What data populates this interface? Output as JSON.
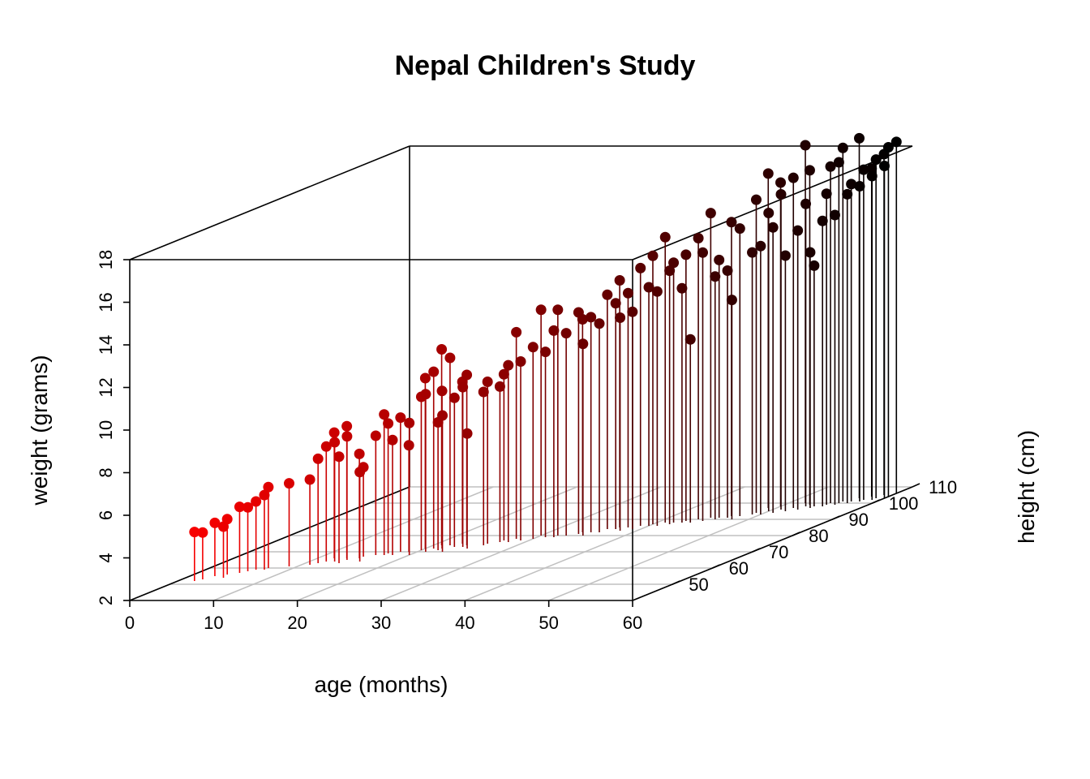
{
  "chart_data": {
    "type": "scatter3d",
    "title": "Nepal Children's Study",
    "xlabel": "age (months)",
    "ylabel": "height (cm)",
    "zlabel": "weight (grams)",
    "xlim": [
      0,
      60
    ],
    "ylim": [
      40,
      110
    ],
    "zlim": [
      2,
      18
    ],
    "x_ticks": [
      "0",
      "10",
      "20",
      "30",
      "40",
      "50",
      "60"
    ],
    "y_ticks": [
      "50",
      "60",
      "70",
      "80",
      "90",
      "100",
      "110"
    ],
    "z_ticks": [
      "2",
      "4",
      "6",
      "8",
      "10",
      "12",
      "14",
      "16",
      "18"
    ],
    "grid": true,
    "drop_lines": true,
    "color_gradient": [
      "#ff0000",
      "#000000"
    ],
    "points": [
      [
        2,
        52,
        4.3
      ],
      [
        2.5,
        53,
        4.2
      ],
      [
        3,
        55,
        4.5
      ],
      [
        4,
        56,
        4.6
      ],
      [
        4.5,
        54,
        4.4
      ],
      [
        5,
        57,
        5.1
      ],
      [
        5.5,
        58,
        5.0
      ],
      [
        6,
        59,
        5.2
      ],
      [
        7,
        60,
        5.8
      ],
      [
        7,
        59,
        5.5
      ],
      [
        9,
        61,
        5.9
      ],
      [
        11,
        62,
        6.0
      ],
      [
        11.5,
        63,
        6.9
      ],
      [
        12,
        66,
        7.9
      ],
      [
        12,
        64,
        7.4
      ],
      [
        13,
        64,
        7.6
      ],
      [
        13.5,
        66,
        8.2
      ],
      [
        14,
        63,
        7.0
      ],
      [
        14,
        65,
        7.8
      ],
      [
        15,
        66,
        6.9
      ],
      [
        15,
        67,
        6.2
      ],
      [
        16,
        64,
        6.2
      ],
      [
        16,
        68,
        7.6
      ],
      [
        17,
        68,
        8.6
      ],
      [
        17,
        69,
        8.1
      ],
      [
        18,
        68,
        7.4
      ],
      [
        18,
        70,
        8.3
      ],
      [
        19,
        70,
        7.0
      ],
      [
        20,
        71,
        9.2
      ],
      [
        20,
        72,
        10.0
      ],
      [
        20,
        68,
        8.2
      ],
      [
        21,
        70,
        9.4
      ],
      [
        21,
        72,
        10.3
      ],
      [
        21,
        74,
        11.2
      ],
      [
        22,
        72,
        9.4
      ],
      [
        22,
        74,
        10.8
      ],
      [
        22,
        71,
        8.0
      ],
      [
        23,
        70,
        8.4
      ],
      [
        23,
        73,
        9.0
      ],
      [
        23,
        75,
        9.6
      ],
      [
        24,
        73,
        9.5
      ],
      [
        24,
        74,
        10.0
      ],
      [
        25,
        72,
        7.4
      ],
      [
        26,
        74,
        9.2
      ],
      [
        26,
        75,
        9.6
      ],
      [
        27,
        76,
        9.3
      ],
      [
        27,
        77,
        9.8
      ],
      [
        28,
        76,
        10.3
      ],
      [
        28,
        78,
        11.7
      ],
      [
        29,
        77,
        10.4
      ],
      [
        30,
        78,
        11.0
      ],
      [
        30,
        80,
        12.6
      ],
      [
        31,
        79,
        10.7
      ],
      [
        32,
        79,
        11.7
      ],
      [
        32,
        80,
        12.6
      ],
      [
        33,
        80,
        11.5
      ],
      [
        34,
        81,
        12.4
      ],
      [
        34,
        82,
        12.0
      ],
      [
        35,
        80,
        11.0
      ],
      [
        35,
        82,
        12.1
      ],
      [
        36,
        82,
        11.8
      ],
      [
        36,
        84,
        13.0
      ],
      [
        37,
        84,
        12.6
      ],
      [
        37,
        85,
        13.6
      ],
      [
        38,
        83,
        12.0
      ],
      [
        38,
        85,
        13.0
      ],
      [
        39,
        86,
        14.1
      ],
      [
        39,
        84,
        12.2
      ],
      [
        40,
        86,
        13.2
      ],
      [
        40,
        87,
        14.6
      ],
      [
        41,
        88,
        15.4
      ],
      [
        41,
        86,
        13.0
      ],
      [
        42,
        87,
        13.9
      ],
      [
        42,
        88,
        14.2
      ],
      [
        43,
        88,
        13.0
      ],
      [
        43,
        89,
        14.5
      ],
      [
        44,
        88,
        10.6
      ],
      [
        44,
        90,
        15.2
      ],
      [
        45,
        89,
        14.6
      ],
      [
        45,
        91,
        16.3
      ],
      [
        46,
        90,
        13.4
      ],
      [
        46,
        91,
        14.1
      ],
      [
        47,
        91,
        13.6
      ],
      [
        47,
        92,
        15.8
      ],
      [
        48,
        92,
        15.5
      ],
      [
        48,
        90,
        12.3
      ],
      [
        49,
        93,
        14.3
      ],
      [
        49,
        94,
        16.7
      ],
      [
        50,
        93,
        14.6
      ],
      [
        50,
        95,
        16.0
      ],
      [
        51,
        94,
        15.4
      ],
      [
        51,
        96,
        16.8
      ],
      [
        52,
        95,
        14.0
      ],
      [
        52,
        97,
        17.5
      ],
      [
        53,
        96,
        15.1
      ],
      [
        53,
        98,
        16.2
      ],
      [
        54,
        97,
        14.0
      ],
      [
        54,
        98,
        13.3
      ],
      [
        55,
        98,
        15.4
      ],
      [
        55,
        99,
        16.6
      ],
      [
        56,
        99,
        15.6
      ],
      [
        56,
        100,
        18.0
      ],
      [
        57,
        100,
        16.5
      ],
      [
        57,
        101,
        16.9
      ],
      [
        58,
        101,
        16.8
      ],
      [
        58,
        102,
        17.5
      ],
      [
        59,
        103,
        17.9
      ],
      [
        59,
        102,
        17.2
      ],
      [
        60,
        104,
        18.4
      ],
      [
        60,
        103,
        17.6
      ],
      [
        55,
        100,
        17.8
      ],
      [
        56,
        101,
        18.6
      ],
      [
        57,
        103,
        18.9
      ],
      [
        53,
        99,
        17.7
      ],
      [
        52,
        100,
        18.8
      ],
      [
        50,
        98,
        17.2
      ],
      [
        49,
        97,
        17.7
      ],
      [
        58,
        104,
        17.4
      ],
      [
        59,
        105,
        18.0
      ],
      [
        60,
        106,
        18.5
      ]
    ]
  }
}
